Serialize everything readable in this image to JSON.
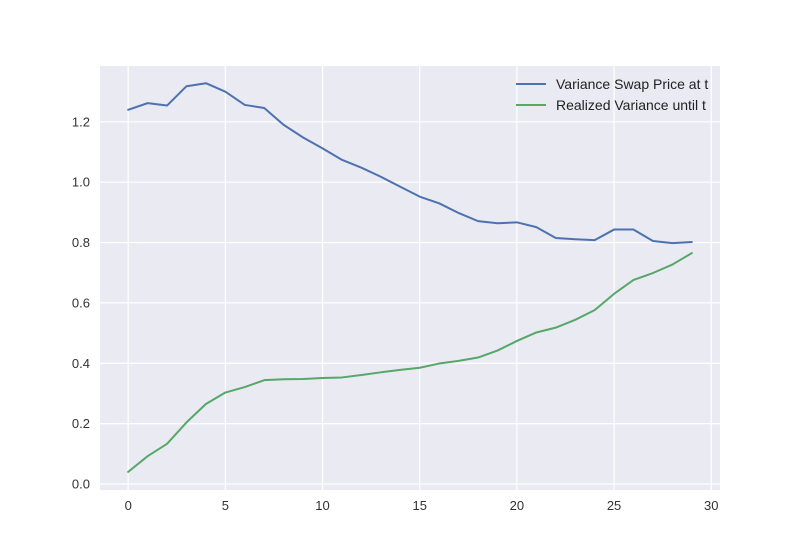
{
  "chart_data": {
    "type": "line",
    "title": "",
    "xlabel": "",
    "ylabel": "",
    "xlim": [
      -1.45,
      30.45
    ],
    "ylim": [
      -0.02,
      1.385
    ],
    "xticks": [
      0,
      5,
      10,
      15,
      20,
      25,
      30
    ],
    "xtick_labels": [
      "0",
      "5",
      "10",
      "15",
      "20",
      "25",
      "30"
    ],
    "yticks": [
      0.0,
      0.2,
      0.4,
      0.6,
      0.8,
      1.0,
      1.2
    ],
    "ytick_labels": [
      "0.0",
      "0.2",
      "0.4",
      "0.6",
      "0.8",
      "1.0",
      "1.2"
    ],
    "grid": true,
    "legend_position": "top-right",
    "x": [
      0,
      1,
      2,
      3,
      4,
      5,
      6,
      7,
      8,
      9,
      10,
      11,
      12,
      13,
      14,
      15,
      16,
      17,
      18,
      19,
      20,
      21,
      22,
      23,
      24,
      25,
      26,
      27,
      28,
      29
    ],
    "series": [
      {
        "name": "Variance Swap Price at t",
        "color": "#4c72b0",
        "values": [
          1.24,
          1.262,
          1.254,
          1.318,
          1.328,
          1.3,
          1.256,
          1.246,
          1.19,
          1.148,
          1.112,
          1.074,
          1.048,
          1.018,
          0.985,
          0.952,
          0.93,
          0.898,
          0.871,
          0.864,
          0.867,
          0.851,
          0.815,
          0.811,
          0.808,
          0.843,
          0.843,
          0.805,
          0.798,
          0.802
        ]
      },
      {
        "name": "Realized Variance until t",
        "color": "#55a868",
        "values": [
          0.04,
          0.092,
          0.133,
          0.204,
          0.265,
          0.303,
          0.321,
          0.344,
          0.347,
          0.348,
          0.351,
          0.353,
          0.361,
          0.37,
          0.378,
          0.385,
          0.399,
          0.408,
          0.419,
          0.442,
          0.474,
          0.502,
          0.518,
          0.544,
          0.576,
          0.63,
          0.676,
          0.699,
          0.727,
          0.765
        ]
      }
    ]
  }
}
